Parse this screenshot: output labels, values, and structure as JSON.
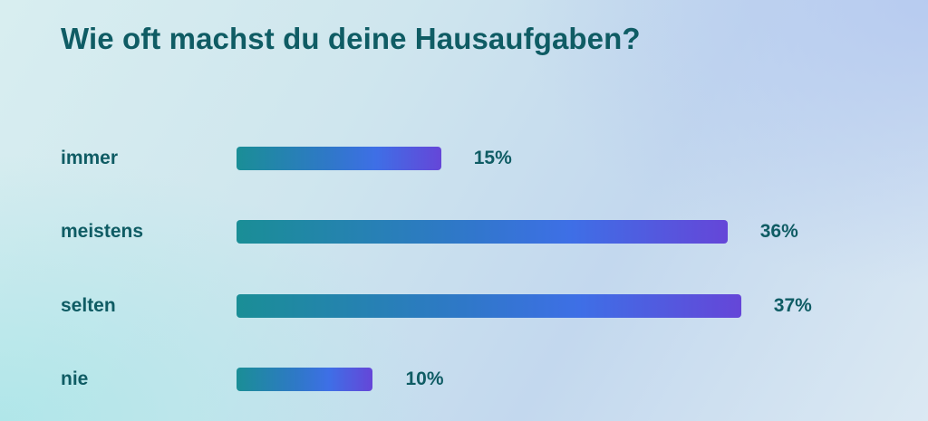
{
  "chart_data": {
    "type": "bar",
    "orientation": "horizontal",
    "title": "Wie oft machst du deine Hausaufgaben?",
    "categories": [
      "immer",
      "meistens",
      "selten",
      "nie"
    ],
    "values": [
      15,
      36,
      37,
      10
    ],
    "value_labels": [
      "15%",
      "36%",
      "37%",
      "10%"
    ],
    "unit": "%",
    "xlim": [
      0,
      41
    ],
    "grid": false,
    "legend": "none",
    "colors": {
      "bar_gradient_start": "#1a8e96",
      "bar_gradient_mid": "#3e6fe6",
      "bar_gradient_end": "#6546d8",
      "text": "#0f5c64"
    }
  }
}
